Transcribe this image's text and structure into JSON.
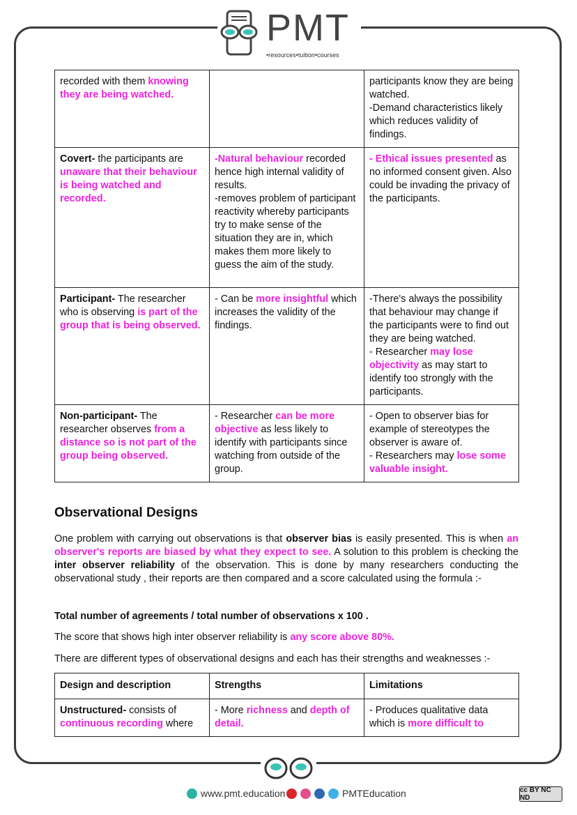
{
  "header": {
    "logo_text": "PMT",
    "logo_tagline": "•resources•tuition•courses"
  },
  "table1": {
    "rows": [
      [
        [
          {
            "t": "recorded with them ",
            "s": "n"
          },
          {
            "t": "knowing they are being watched.",
            "s": "m"
          }
        ],
        [],
        [
          {
            "t": "participants know they are being watched.\n-Demand characteristics likely which reduces validity of findings.",
            "s": "n"
          }
        ]
      ],
      [
        [
          {
            "t": "Covert-",
            "s": "b"
          },
          {
            "t": " the participants are ",
            "s": "n"
          },
          {
            "t": "unaware that their behaviour is being watched and recorded.",
            "s": "m"
          }
        ],
        [
          {
            "t": "-Natural behaviour",
            "s": "m"
          },
          {
            "t": " recorded hence high internal validity of results.\n-removes problem of participant reactivity whereby participants try to make sense of the situation they are in, which makes them more likely to guess the aim of the study.",
            "s": "n"
          }
        ],
        [
          {
            "t": "- Ethical issues presented",
            "s": "m"
          },
          {
            "t": " as no informed consent given. Also could be invading the privacy of the participants.",
            "s": "n"
          }
        ]
      ],
      [
        [
          {
            "t": "Participant-",
            "s": "b"
          },
          {
            "t": " The researcher who is observing ",
            "s": "n"
          },
          {
            "t": "is part of the group that is being observed.",
            "s": "m"
          }
        ],
        [
          {
            "t": "- Can be ",
            "s": "n"
          },
          {
            "t": "more insightful",
            "s": "m"
          },
          {
            "t": " which increases the validity of the findings.",
            "s": "n"
          }
        ],
        [
          {
            "t": "-There's always the possibility that behaviour may change if the participants were to find out they are being watched.\n- Researcher ",
            "s": "n"
          },
          {
            "t": "may lose objectivity",
            "s": "m"
          },
          {
            "t": " as may start to identify too strongly with the participants.",
            "s": "n"
          }
        ]
      ],
      [
        [
          {
            "t": "Non-participant-",
            "s": "b"
          },
          {
            "t": " The researcher observes ",
            "s": "n"
          },
          {
            "t": "from a distance so is not part of the group being observed.",
            "s": "m"
          }
        ],
        [
          {
            "t": "- Researcher ",
            "s": "n"
          },
          {
            "t": "can be more objective",
            "s": "m"
          },
          {
            "t": " as less likely to identify with participants since watching from outside of the group.",
            "s": "n"
          }
        ],
        [
          {
            "t": "- Open to observer bias for example of stereotypes the observer is aware of.\n- Researchers may ",
            "s": "n"
          },
          {
            "t": "lose some valuable insight.",
            "s": "m"
          }
        ]
      ]
    ]
  },
  "section": {
    "heading": "Observational Designs",
    "p1": [
      {
        "t": "One problem with carrying out observations is that ",
        "s": "n"
      },
      {
        "t": "observer bias",
        "s": "b"
      },
      {
        "t": " is easily presented. This is when ",
        "s": "n"
      },
      {
        "t": "an observer's reports are biased by what they expect to see.",
        "s": "m"
      },
      {
        "t": " A solution to this problem is checking the ",
        "s": "n"
      },
      {
        "t": "inter observer reliability",
        "s": "b"
      },
      {
        "t": " of the observation. This is done by many researchers conducting the observational study , their reports are then compared and a score calculated using the formula :-",
        "s": "n"
      }
    ],
    "p2": [
      {
        "t": "Total number of agreements / total number of observations x 100 .",
        "s": "b"
      }
    ],
    "p3": [
      {
        "t": "The score that shows high inter observer reliability is ",
        "s": "n"
      },
      {
        "t": "any score above 80%.",
        "s": "m"
      }
    ],
    "p4": [
      {
        "t": "There are different types of observational designs and each has their strengths and weaknesses :-",
        "s": "n"
      }
    ]
  },
  "table2": {
    "rows": [
      [
        [
          {
            "t": "Design and description",
            "s": "b"
          }
        ],
        [
          {
            "t": "Strengths",
            "s": "b"
          }
        ],
        [
          {
            "t": "Limitations",
            "s": "b"
          }
        ]
      ],
      [
        [
          {
            "t": "Unstructured-",
            "s": "b"
          },
          {
            "t": " consists of ",
            "s": "n"
          },
          {
            "t": "continuous recording",
            "s": "m"
          },
          {
            "t": " where",
            "s": "n"
          }
        ],
        [
          {
            "t": "- More ",
            "s": "n"
          },
          {
            "t": "richness",
            "s": "m"
          },
          {
            "t": " and ",
            "s": "n"
          },
          {
            "t": "depth of detail.",
            "s": "m"
          }
        ],
        [
          {
            "t": "- Produces qualitative data which is ",
            "s": "n"
          },
          {
            "t": "more difficult to",
            "s": "m"
          }
        ]
      ]
    ]
  },
  "footer": {
    "website": "www.pmt.education",
    "social": "PMTEducation",
    "license": "cc BY NC ND"
  },
  "colors": {
    "highlight": "#ee22dd",
    "brand_teal": "#2bb3a3"
  }
}
